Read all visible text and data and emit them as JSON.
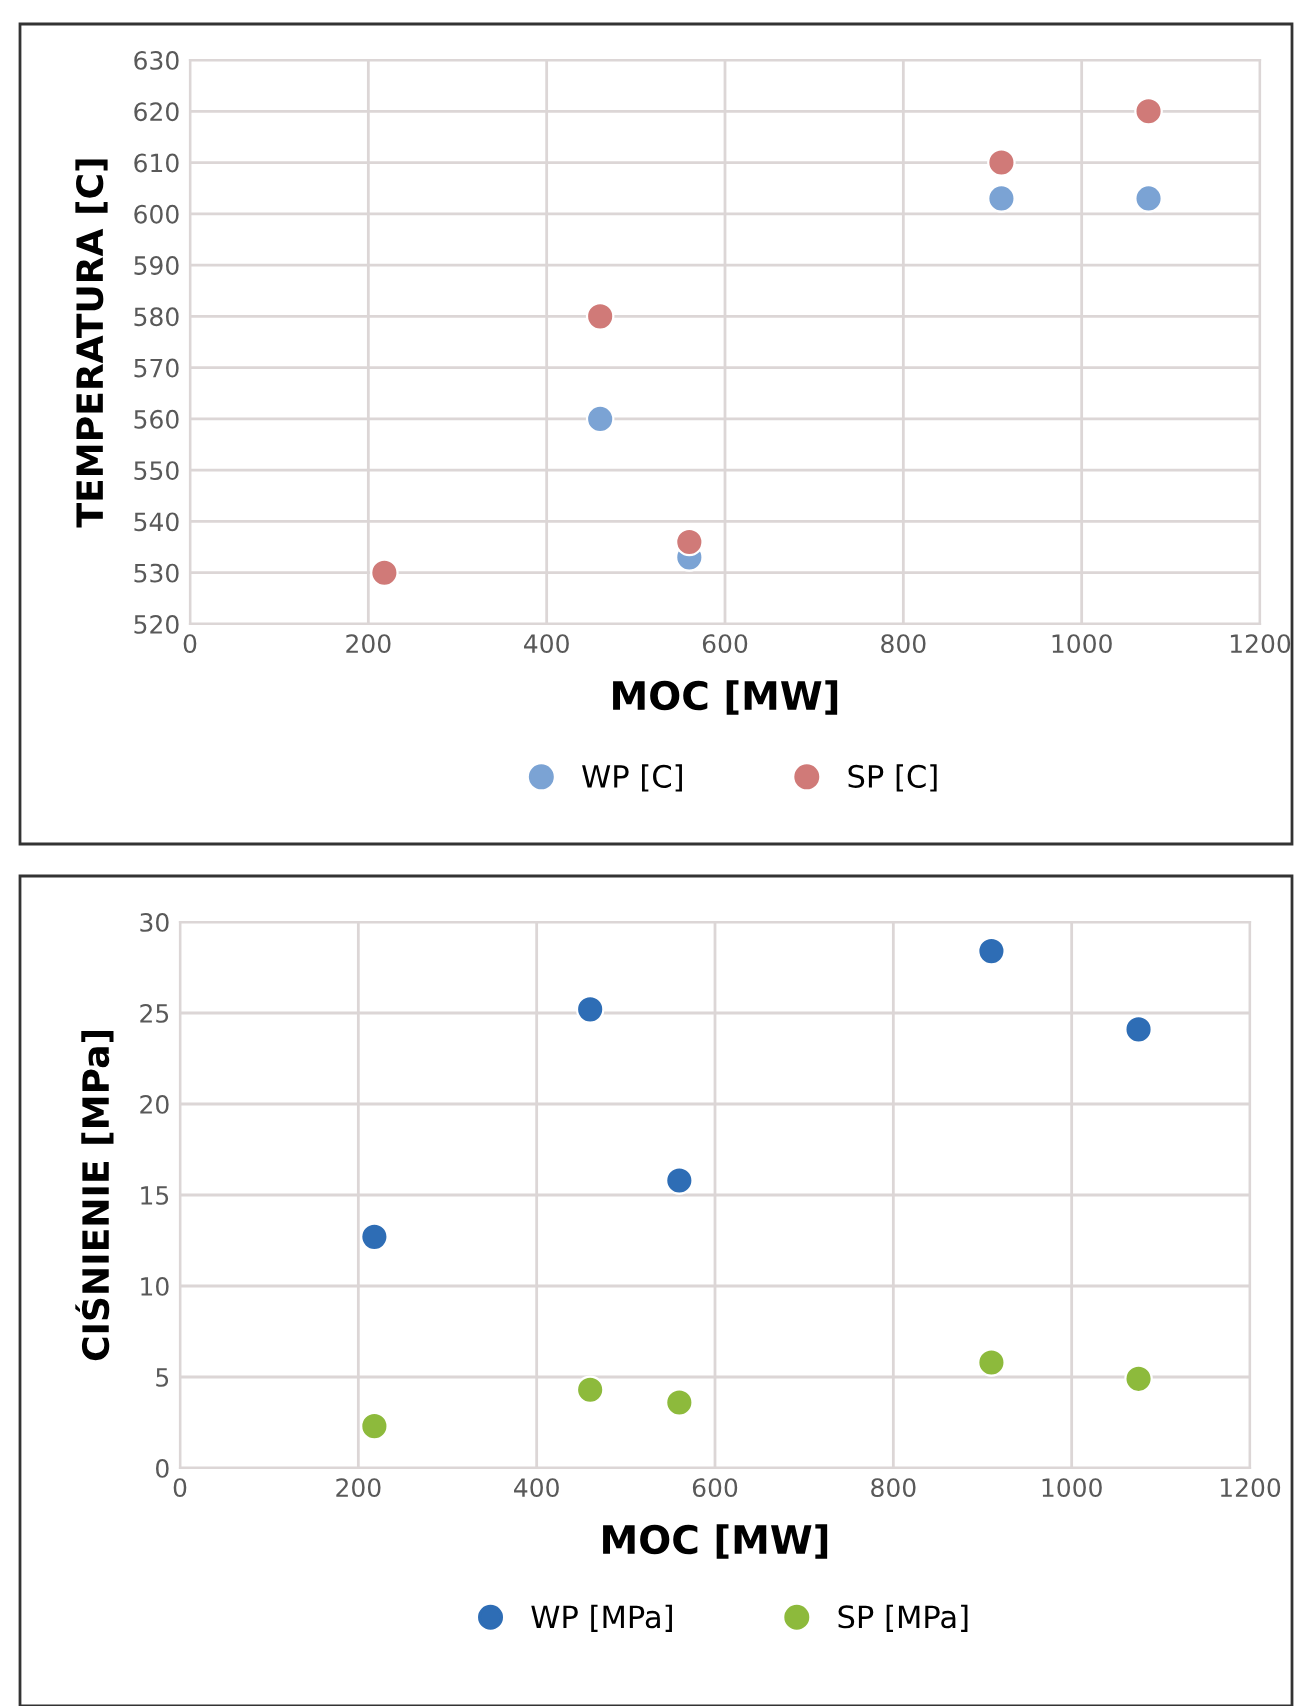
{
  "chart_data": [
    {
      "type": "scatter",
      "xlabel": "MOC [MW]",
      "ylabel": "TEMPERATURA [C]",
      "x": [
        218,
        460,
        560,
        910,
        1075
      ],
      "series": [
        {
          "name": "WP [C]",
          "color": "#7ba3d4",
          "values": [
            null,
            560,
            533,
            603,
            603
          ]
        },
        {
          "name": "SP [C]",
          "color": "#d07a78",
          "values": [
            530,
            580,
            536,
            610,
            620
          ]
        }
      ],
      "xlim": [
        0,
        1200
      ],
      "xticks": [
        0,
        200,
        400,
        600,
        800,
        1000,
        1200
      ],
      "ylim": [
        520,
        630
      ],
      "yticks": [
        520,
        530,
        540,
        550,
        560,
        570,
        580,
        590,
        600,
        610,
        620,
        630
      ],
      "grid": true,
      "legend": "bottom",
      "marker": "circle"
    },
    {
      "type": "scatter",
      "xlabel": "MOC [MW]",
      "ylabel": "CIŚNIENIE [MPa]",
      "x": [
        218,
        460,
        560,
        910,
        1075
      ],
      "series": [
        {
          "name": "WP [MPa]",
          "color": "#2e6db5",
          "values": [
            12.7,
            25.2,
            15.8,
            28.4,
            24.1
          ]
        },
        {
          "name": "SP [MPa]",
          "color": "#8dba3c",
          "values": [
            2.3,
            4.3,
            3.6,
            5.8,
            4.9
          ]
        }
      ],
      "xlim": [
        0,
        1200
      ],
      "xticks": [
        0,
        200,
        400,
        600,
        800,
        1000,
        1200
      ],
      "ylim": [
        0,
        30
      ],
      "yticks": [
        0,
        5,
        10,
        15,
        20,
        25,
        30
      ],
      "grid": true,
      "legend": "bottom",
      "marker": "circle"
    }
  ]
}
